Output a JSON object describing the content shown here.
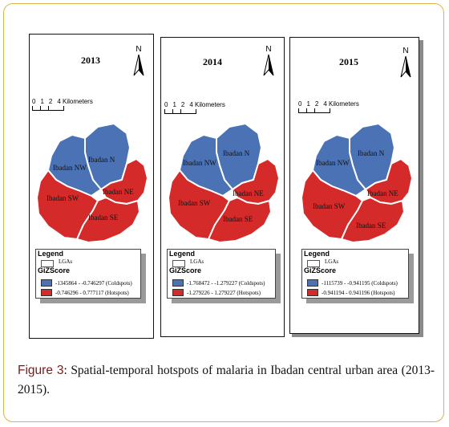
{
  "figure": {
    "caption_label": "Figure 3",
    "caption_sep": ":",
    "caption_text": " Spatial-temporal hotspots of malaria in Ibadan central urban area (2013-2015)."
  },
  "colors": {
    "coldspot": "#4a72b5",
    "hotspot": "#d42a2a"
  },
  "north_label": "N",
  "scale_ticks": [
    "0",
    "1",
    "2",
    "4 Kilometers"
  ],
  "lga_names": [
    "Ibadan N",
    "Ibadan NW",
    "Ibadan SW",
    "Ibadan NE",
    "Ibadan SE"
  ],
  "legend": {
    "title": "Legend",
    "lgas": "LGAs",
    "giz": "GiZScore"
  },
  "panels": [
    {
      "year": "2013",
      "coldspots": "-1345864 - -0.746297 (Coldspots)",
      "hotspots": "-0.746296 - 0.777117 (Hotspots)"
    },
    {
      "year": "2014",
      "coldspots": "-1.768472 - -1.279227 (Coldspots)",
      "hotspots": "-1.279226 - 1.279227 (Hotspots)"
    },
    {
      "year": "2015",
      "coldspots": "-1115739 - -0.941195 (Coldspots)",
      "hotspots": "-0.941194 - 0.941196 (Hotspots)"
    }
  ]
}
